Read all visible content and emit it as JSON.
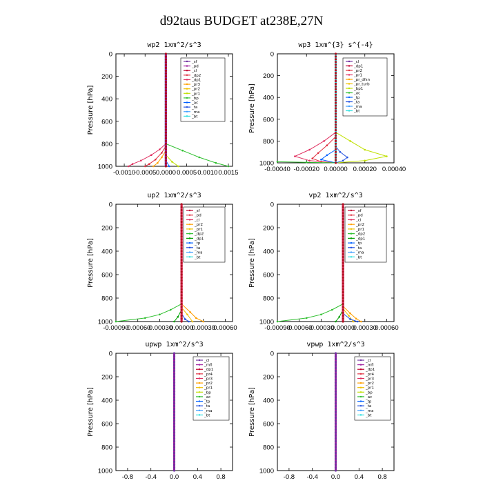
{
  "figure_title": "d92taus  BUDGET at238E,27N",
  "chart_data": [
    {
      "type": "line",
      "title": "wp2  1xm^2/s^3",
      "ylabel": "Pressure [hPa]",
      "ylim": [
        1000,
        0
      ],
      "xlim": [
        -0.0012,
        0.0016
      ],
      "xticks": [
        -0.001,
        -0.0005,
        0.0,
        0.0005,
        0.001,
        0.0015
      ],
      "xtick_labels": [
        "-0.0010",
        "-0.0005",
        "0.0000",
        "0.0005",
        "0.0010",
        "0.0015"
      ],
      "yticks": [
        0,
        200,
        400,
        600,
        800,
        1000
      ],
      "legend": [
        "_sf",
        "_pd",
        "_cl",
        "_dp2",
        "_dp1",
        "_pr3",
        "_pr2",
        "_pr1",
        "_bp",
        "_ac",
        "_ta",
        "_ma",
        "_bt"
      ],
      "colors": [
        "#7030a0",
        "#a020a0",
        "#c00030",
        "#e03040",
        "#e03060",
        "#ffa000",
        "#f0c000",
        "#c0e000",
        "#30c030",
        "#0060ff",
        "#2050e0",
        "#40a0ff",
        "#30e0e0"
      ],
      "series": [
        {
          "name": "_dp1",
          "p": [
            800,
            850,
            900,
            950,
            980,
            1000
          ],
          "v": [
            0,
            -0.00015,
            -0.00035,
            -0.0006,
            -0.0008,
            -0.0009
          ]
        },
        {
          "name": "_dp2",
          "p": [
            820,
            880,
            940,
            980,
            1000
          ],
          "v": [
            0,
            -0.0001,
            -0.00025,
            -0.0004,
            -0.0005
          ]
        },
        {
          "name": "_pr3",
          "p": [
            860,
            920,
            970,
            1000
          ],
          "v": [
            0,
            -0.0001,
            -0.0002,
            -0.0003
          ]
        },
        {
          "name": "_bp",
          "p": [
            800,
            860,
            920,
            970,
            1000
          ],
          "v": [
            0,
            0.0004,
            0.0008,
            0.0012,
            0.0015
          ]
        },
        {
          "name": "_pr1",
          "p": [
            900,
            960,
            1000
          ],
          "v": [
            0,
            0.00015,
            0.0003
          ]
        },
        {
          "name": "_ac",
          "p": [
            950,
            1000
          ],
          "v": [
            0,
            8e-05
          ]
        },
        {
          "name": "_sf",
          "p": [
            0,
            1000
          ],
          "v": [
            0,
            0
          ]
        },
        {
          "name": "_ta",
          "p": [
            0,
            1000
          ],
          "v": [
            0,
            0
          ]
        },
        {
          "name": "_bt",
          "p": [
            0,
            1000
          ],
          "v": [
            0,
            0
          ]
        },
        {
          "name": "_pd",
          "p": [
            0,
            1000
          ],
          "v": [
            0,
            0
          ]
        }
      ]
    },
    {
      "type": "line",
      "title": "wp3  1xm^{3} s^{-4}",
      "ylabel": "Pressure [hPa]",
      "ylim": [
        1000,
        0
      ],
      "xlim": [
        -0.0004,
        0.0004
      ],
      "xticks": [
        -0.0004,
        -0.0002,
        0.0,
        0.0002,
        0.0004
      ],
      "xtick_labels": [
        "-0.00040",
        "-0.00020",
        "0.00000",
        "0.00020",
        "0.00040"
      ],
      "yticks": [
        0,
        200,
        400,
        600,
        800,
        1000
      ],
      "legend": [
        "_cl",
        "_dp1",
        "_pr2",
        "_pr1",
        "_pr_dfsn",
        "_pr_turb",
        "_bp1",
        "_ac",
        "_tp",
        "_ta",
        "_ma",
        "_bt"
      ],
      "colors": [
        "#7030a0",
        "#c00030",
        "#e03040",
        "#e03060",
        "#ffa000",
        "#f0c000",
        "#c0e000",
        "#30c030",
        "#0060ff",
        "#2050e0",
        "#40a0ff",
        "#30e0e0"
      ],
      "series": [
        {
          "name": "_pr1",
          "p": [
            720,
            800,
            880,
            940,
            980,
            1000
          ],
          "v": [
            0,
            -8e-05,
            -0.00018,
            -0.00028,
            -0.00018,
            0
          ]
        },
        {
          "name": "_pr2",
          "p": [
            760,
            840,
            910,
            960,
            990,
            1000
          ],
          "v": [
            0,
            -6e-05,
            -0.00012,
            -0.00016,
            -0.0001,
            0
          ]
        },
        {
          "name": "_bp1",
          "p": [
            720,
            800,
            880,
            940,
            980,
            1000
          ],
          "v": [
            0,
            0.0001,
            0.0002,
            0.00035,
            0.0002,
            0
          ]
        },
        {
          "name": "_ta",
          "p": [
            850,
            900,
            950,
            980,
            1000
          ],
          "v": [
            0,
            3e-05,
            8e-05,
            5e-05,
            0
          ]
        },
        {
          "name": "_tp",
          "p": [
            880,
            930,
            970,
            1000
          ],
          "v": [
            0,
            -6e-05,
            -0.0001,
            0
          ]
        },
        {
          "name": "_ac",
          "p": [
            990,
            995,
            1000
          ],
          "v": [
            -0.0004,
            -0.0002,
            0
          ]
        },
        {
          "name": "_cl",
          "p": [
            0,
            1000
          ],
          "v": [
            0,
            0
          ]
        },
        {
          "name": "_dp1",
          "p": [
            0,
            1000
          ],
          "v": [
            0,
            0
          ]
        },
        {
          "name": "_bt",
          "p": [
            0,
            1000
          ],
          "v": [
            0,
            0
          ]
        }
      ]
    },
    {
      "type": "line",
      "title": "up2  1xm^2/s^3",
      "ylabel": "Pressure [hPa]",
      "ylim": [
        1000,
        0
      ],
      "xlim": [
        -0.0009,
        0.0007
      ],
      "xticks": [
        -0.0009,
        -0.0006,
        -0.0003,
        0.0,
        0.0003,
        0.0006
      ],
      "xtick_labels": [
        "-0.00090",
        "-0.00060",
        "-0.00030",
        "0.00000",
        "0.00030",
        "0.00060"
      ],
      "yticks": [
        0,
        200,
        400,
        600,
        800,
        1000
      ],
      "legend": [
        "_sf",
        "_pd",
        "_cl",
        "_pr2",
        "_pr1",
        "_dp2",
        "_dp1",
        "_tp",
        "_ta",
        "_ma",
        "_bt"
      ],
      "colors": [
        "#c00030",
        "#e03040",
        "#e03060",
        "#ffa000",
        "#f0c000",
        "#30c030",
        "#00a000",
        "#0060ff",
        "#2050e0",
        "#40a0ff",
        "#30e0e0"
      ],
      "series": [
        {
          "name": "_dp2",
          "p": [
            850,
            900,
            940,
            970,
            1000
          ],
          "v": [
            0,
            -0.00015,
            -0.0003,
            -0.0005,
            -0.0009
          ]
        },
        {
          "name": "_pr2",
          "p": [
            850,
            920,
            970,
            1000
          ],
          "v": [
            0,
            0.00012,
            0.0002,
            0.0003
          ]
        },
        {
          "name": "_pr1",
          "p": [
            880,
            940,
            1000
          ],
          "v": [
            0,
            8e-05,
            0.00015
          ]
        },
        {
          "name": "_dp1",
          "p": [
            900,
            960,
            1000
          ],
          "v": [
            0,
            -5e-05,
            -0.0001
          ]
        },
        {
          "name": "_ta",
          "p": [
            930,
            980,
            1000
          ],
          "v": [
            0,
            5e-05,
            0.0001
          ]
        },
        {
          "name": "_sf",
          "p": [
            0,
            1000
          ],
          "v": [
            0,
            0
          ]
        },
        {
          "name": "_pd",
          "p": [
            0,
            1000
          ],
          "v": [
            0,
            0
          ]
        },
        {
          "name": "_cl",
          "p": [
            0,
            1000
          ],
          "v": [
            0,
            0
          ]
        }
      ]
    },
    {
      "type": "line",
      "title": "vp2  1xm^2/s^3",
      "ylabel": "Pressure [hPa]",
      "ylim": [
        1000,
        0
      ],
      "xlim": [
        -0.0009,
        0.0007
      ],
      "xticks": [
        -0.0009,
        -0.0006,
        -0.0003,
        0.0,
        0.0003,
        0.0006
      ],
      "xtick_labels": [
        "-0.00090",
        "-0.00060",
        "-0.00030",
        "0.00000",
        "0.00030",
        "0.00060"
      ],
      "yticks": [
        0,
        200,
        400,
        600,
        800,
        1000
      ],
      "legend": [
        "_sf",
        "_pd",
        "_cl",
        "_pr2",
        "_pr1",
        "_dp2",
        "_dp1",
        "_tp",
        "_ta",
        "_ma",
        "_bt"
      ],
      "colors": [
        "#c00030",
        "#e03040",
        "#e03060",
        "#ffa000",
        "#f0c000",
        "#30c030",
        "#00a000",
        "#0060ff",
        "#2050e0",
        "#40a0ff",
        "#30e0e0"
      ],
      "series": [
        {
          "name": "_dp2",
          "p": [
            850,
            900,
            940,
            970,
            1000
          ],
          "v": [
            0,
            -0.00015,
            -0.0003,
            -0.0005,
            -0.0009
          ]
        },
        {
          "name": "_pr2",
          "p": [
            870,
            930,
            975,
            1000
          ],
          "v": [
            0,
            0.0001,
            0.00018,
            0.00025
          ]
        },
        {
          "name": "_pr1",
          "p": [
            890,
            950,
            1000
          ],
          "v": [
            0,
            8e-05,
            0.00014
          ]
        },
        {
          "name": "_ta",
          "p": [
            930,
            980,
            1000
          ],
          "v": [
            0,
            0.0001,
            0.0002
          ]
        },
        {
          "name": "_dp1",
          "p": [
            900,
            960,
            1000
          ],
          "v": [
            0,
            -5e-05,
            -0.0001
          ]
        },
        {
          "name": "_sf",
          "p": [
            0,
            1000
          ],
          "v": [
            0,
            0
          ]
        },
        {
          "name": "_pd",
          "p": [
            0,
            1000
          ],
          "v": [
            0,
            0
          ]
        },
        {
          "name": "_cl",
          "p": [
            0,
            1000
          ],
          "v": [
            0,
            0
          ]
        }
      ]
    },
    {
      "type": "line",
      "title": "upwp  1xm^2/s^3",
      "ylabel": "Pressure [hPa]",
      "ylim": [
        1000,
        0
      ],
      "xlim": [
        -1.0,
        1.0
      ],
      "xticks": [
        -0.8,
        -0.4,
        0.0,
        0.4,
        0.8
      ],
      "xtick_labels": [
        "-0.8",
        "-0.4",
        "0.0",
        "0.4",
        "0.8"
      ],
      "yticks": [
        0,
        200,
        400,
        600,
        800,
        1000
      ],
      "legend": [
        "_cl",
        "_mfl",
        "_dp1",
        "_pr4",
        "_pr3",
        "_pr2",
        "_pr1",
        "_bp",
        "_ac",
        "_tp",
        "_ta",
        "_ma",
        "_bt"
      ],
      "colors": [
        "#7030a0",
        "#a020a0",
        "#c00030",
        "#e03040",
        "#e03060",
        "#ffa000",
        "#f0c000",
        "#c0e000",
        "#30c030",
        "#0060ff",
        "#2050e0",
        "#40a0ff",
        "#30e0e0"
      ],
      "series": [
        {
          "name": "_cl",
          "p": [
            0,
            1000
          ],
          "v": [
            0,
            0
          ]
        },
        {
          "name": "_mfl",
          "p": [
            0,
            1000
          ],
          "v": [
            0,
            0
          ]
        }
      ]
    },
    {
      "type": "line",
      "title": "vpwp  1xm^2/s^3",
      "ylabel": "Pressure [hPa]",
      "ylim": [
        1000,
        0
      ],
      "xlim": [
        -1.0,
        1.0
      ],
      "xticks": [
        -0.8,
        -0.4,
        0.0,
        0.4,
        0.8
      ],
      "xtick_labels": [
        "-0.8",
        "-0.4",
        "0.0",
        "0.4",
        "0.8"
      ],
      "yticks": [
        0,
        200,
        400,
        600,
        800,
        1000
      ],
      "legend": [
        "_cl",
        "_mfl",
        "_dp1",
        "_pr4",
        "_pr3",
        "_pr2",
        "_pr1",
        "_bp",
        "_ac",
        "_tp",
        "_ta",
        "_ma",
        "_bt"
      ],
      "colors": [
        "#7030a0",
        "#a020a0",
        "#c00030",
        "#e03040",
        "#e03060",
        "#ffa000",
        "#f0c000",
        "#c0e000",
        "#30c030",
        "#0060ff",
        "#2050e0",
        "#40a0ff",
        "#30e0e0"
      ],
      "series": [
        {
          "name": "_cl",
          "p": [
            0,
            1000
          ],
          "v": [
            0,
            0
          ]
        },
        {
          "name": "_mfl",
          "p": [
            0,
            1000
          ],
          "v": [
            0,
            0
          ]
        }
      ]
    }
  ]
}
